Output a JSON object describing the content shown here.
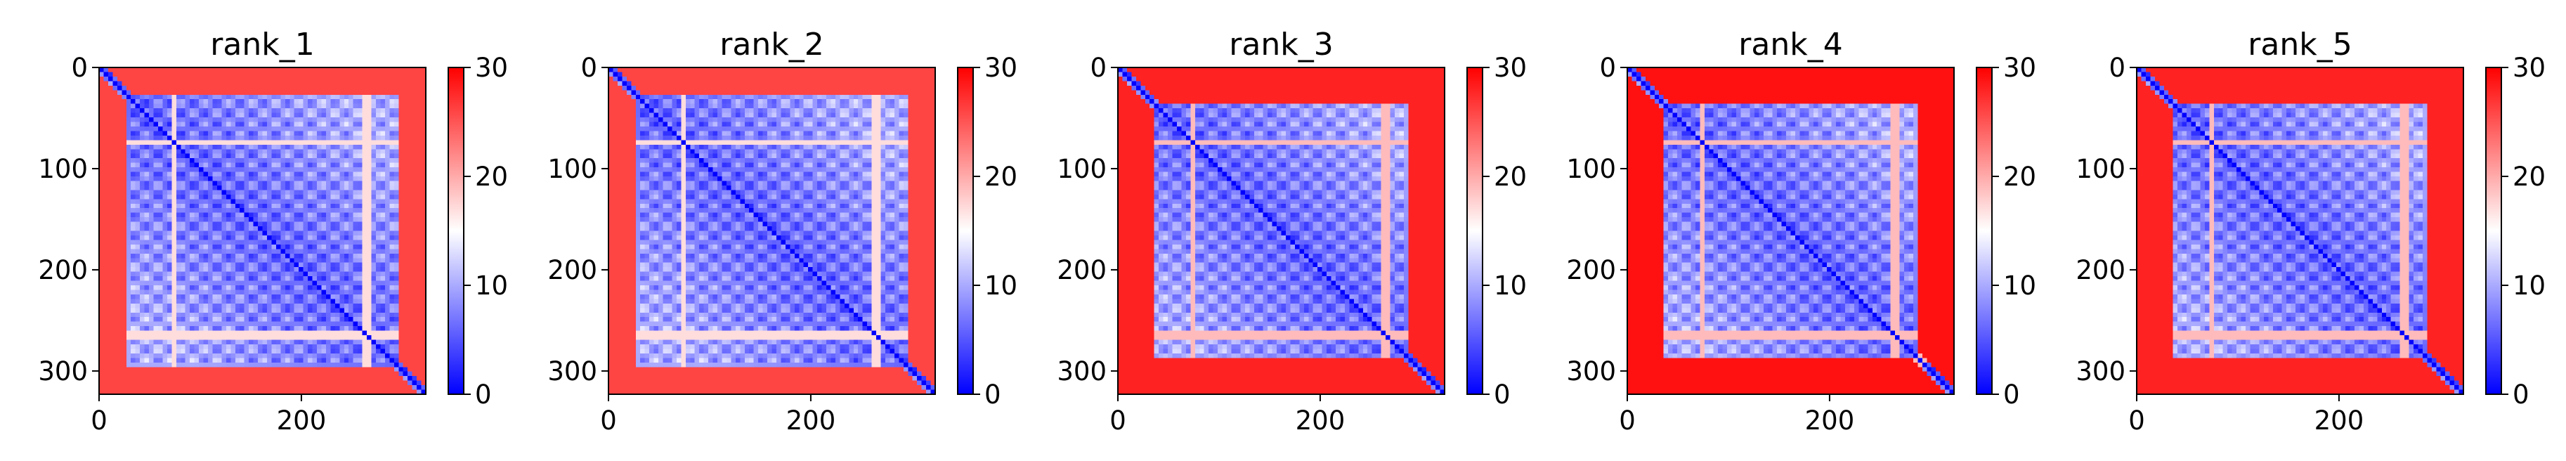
{
  "chart_data": [
    {
      "type": "heatmap",
      "title": "rank_1",
      "xlim": [
        0,
        323
      ],
      "ylim": [
        323,
        0
      ],
      "xticks": [
        "0",
        "200"
      ],
      "yticks": [
        "0",
        "100",
        "200",
        "300"
      ],
      "colorbar": {
        "min": 0,
        "max": 30,
        "ticks": [
          "0",
          "10",
          "20",
          "30"
        ],
        "colors": [
          "#0000ff",
          "#ffffff",
          "#ff0000"
        ]
      },
      "features": {
        "termini_end": 25,
        "termini_value": 26,
        "bands": [
          75,
          265
        ],
        "band_value": 17
      }
    },
    {
      "type": "heatmap",
      "title": "rank_2",
      "xlim": [
        0,
        323
      ],
      "ylim": [
        323,
        0
      ],
      "xticks": [
        "0",
        "200"
      ],
      "yticks": [
        "0",
        "100",
        "200",
        "300"
      ],
      "colorbar": {
        "min": 0,
        "max": 30,
        "ticks": [
          "0",
          "10",
          "20",
          "30"
        ],
        "colors": [
          "#0000ff",
          "#ffffff",
          "#ff0000"
        ]
      },
      "features": {
        "termini_end": 25,
        "termini_value": 26,
        "bands": [
          75,
          265
        ],
        "band_value": 17
      }
    },
    {
      "type": "heatmap",
      "title": "rank_3",
      "xlim": [
        0,
        323
      ],
      "ylim": [
        323,
        0
      ],
      "xticks": [
        "0",
        "200"
      ],
      "yticks": [
        "0",
        "100",
        "200",
        "300"
      ],
      "colorbar": {
        "min": 0,
        "max": 30,
        "ticks": [
          "0",
          "10",
          "20",
          "30"
        ],
        "colors": [
          "#0000ff",
          "#ffffff",
          "#ff0000"
        ]
      },
      "features": {
        "termini_end": 35,
        "termini_value": 28,
        "bands": [
          75,
          265
        ],
        "band_value": 19
      }
    },
    {
      "type": "heatmap",
      "title": "rank_4",
      "xlim": [
        0,
        323
      ],
      "ylim": [
        323,
        0
      ],
      "xticks": [
        "0",
        "200"
      ],
      "yticks": [
        "0",
        "100",
        "200",
        "300"
      ],
      "colorbar": {
        "min": 0,
        "max": 30,
        "ticks": [
          "0",
          "10",
          "20",
          "30"
        ],
        "colors": [
          "#0000ff",
          "#ffffff",
          "#ff0000"
        ]
      },
      "features": {
        "termini_end": 38,
        "termini_value": 29,
        "bands": [
          75,
          265,
          290
        ],
        "band_value": 19
      }
    },
    {
      "type": "heatmap",
      "title": "rank_5",
      "xlim": [
        0,
        323
      ],
      "ylim": [
        323,
        0
      ],
      "xticks": [
        "0",
        "200"
      ],
      "yticks": [
        "0",
        "100",
        "200",
        "300"
      ],
      "colorbar": {
        "min": 0,
        "max": 30,
        "ticks": [
          "0",
          "10",
          "20",
          "30"
        ],
        "colors": [
          "#0000ff",
          "#ffffff",
          "#ff0000"
        ]
      },
      "features": {
        "termini_end": 35,
        "termini_value": 28,
        "bands": [
          75,
          265
        ],
        "band_value": 19
      }
    }
  ]
}
